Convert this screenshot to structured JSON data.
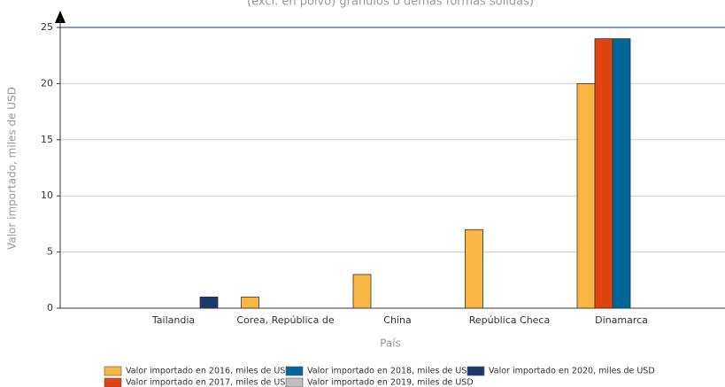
{
  "chart_data": {
    "type": "bar",
    "title": "(excl. en polvo) gránulos o demás formas sólidas)",
    "x_label": "País",
    "y_label": "Valor importado, miles de USD",
    "categories": [
      "Tailandia",
      "Corea, República de",
      "China",
      "República Checa",
      "Dinamarca"
    ],
    "series": [
      {
        "name": "Valor importado en 2016, miles de USD",
        "color": "#f9b642",
        "values": [
          null,
          1,
          3,
          7,
          20
        ]
      },
      {
        "name": "Valor importado en 2017, miles de USD",
        "color": "#e0440e",
        "values": [
          null,
          null,
          null,
          null,
          24
        ]
      },
      {
        "name": "Valor importado en 2018, miles de USD",
        "color": "#006699",
        "values": [
          null,
          null,
          null,
          null,
          24
        ]
      },
      {
        "name": "Valor importado en 2019, miles de USD",
        "color": "#c0c0c0",
        "values": [
          null,
          null,
          null,
          null,
          null
        ]
      },
      {
        "name": "Valor importado en 2020, miles de USD",
        "color": "#1a3a6b",
        "values": [
          1,
          null,
          null,
          null,
          null
        ]
      }
    ],
    "ylim": [
      0,
      25
    ],
    "yticks": [
      0,
      5,
      10,
      15,
      20,
      25
    ],
    "grid": true
  }
}
